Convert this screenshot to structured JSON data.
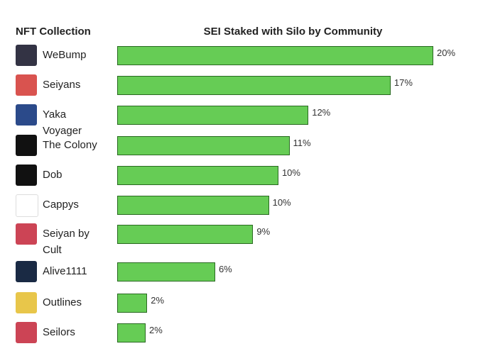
{
  "chart_data": {
    "type": "bar",
    "column_header": "NFT Collection",
    "title": "SEI Staked with Silo by Community",
    "categories": [
      "WeBump",
      "Seiyans",
      "Yaka Voyager",
      "The Colony",
      "Dob",
      "Cappys",
      "Seiyan by Cult",
      "Alive1111",
      "Outlines",
      "Seilors"
    ],
    "values": [
      20,
      17.3,
      12.1,
      10.9,
      10.2,
      9.6,
      8.6,
      6.2,
      1.9,
      1.8
    ],
    "value_labels": [
      "20%",
      "17%",
      "12%",
      "11%",
      "10%",
      "10%",
      "9%",
      "6%",
      "2%",
      "2%"
    ],
    "color": "#66cc55"
  }
}
